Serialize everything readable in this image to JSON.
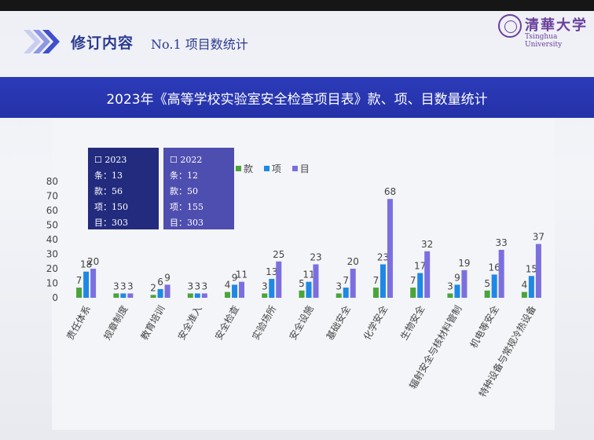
{
  "header": {
    "section_title": "修订内容",
    "subtitle": "No.1  项目数统计",
    "logo_text": "清華大学",
    "logo_en": "Tsinghua University"
  },
  "colors": {
    "band": "#2a36b0",
    "kuan": "#4aa43a",
    "xiang": "#1e88e5",
    "mu": "#7b6fe0",
    "text": "#444444"
  },
  "chart_data": {
    "type": "bar",
    "title": "2023年《高等学校实验室安全检查项目表》款、项、目数量统计",
    "categories": [
      "责任体系",
      "规章制度",
      "教育培训",
      "安全准入",
      "安全检查",
      "实验场所",
      "安全设施",
      "基础安全",
      "化学安全",
      "生物安全",
      "辐射安全与核材料管制",
      "机电等安全",
      "特种设备与常规冷热设备"
    ],
    "series": [
      {
        "name": "款",
        "values": [
          7,
          3,
          2,
          3,
          4,
          3,
          5,
          3,
          7,
          7,
          3,
          5,
          4
        ]
      },
      {
        "name": "项",
        "values": [
          18,
          3,
          6,
          3,
          9,
          13,
          11,
          7,
          23,
          17,
          9,
          16,
          15
        ]
      },
      {
        "name": "目",
        "values": [
          20,
          3,
          9,
          3,
          11,
          25,
          23,
          20,
          68,
          32,
          19,
          33,
          37
        ]
      }
    ],
    "ylim": [
      0,
      80
    ],
    "yticks": [
      0,
      10,
      20,
      30,
      40,
      50,
      60,
      70,
      80
    ],
    "grid": false,
    "legend_position": "top-center"
  },
  "summary_2023": {
    "year": "2023",
    "tiao_label": "条：",
    "tiao": "13",
    "kuan_label": "款：",
    "kuan": "56",
    "xiang_label": "项：",
    "xiang": "150",
    "mu_label": "目：",
    "mu": "303"
  },
  "summary_2022": {
    "year": "2022",
    "tiao_label": "条：",
    "tiao": "12",
    "kuan_label": "款：",
    "kuan": "50",
    "xiang_label": "项：",
    "xiang": "155",
    "mu_label": "目：",
    "mu": "303"
  }
}
